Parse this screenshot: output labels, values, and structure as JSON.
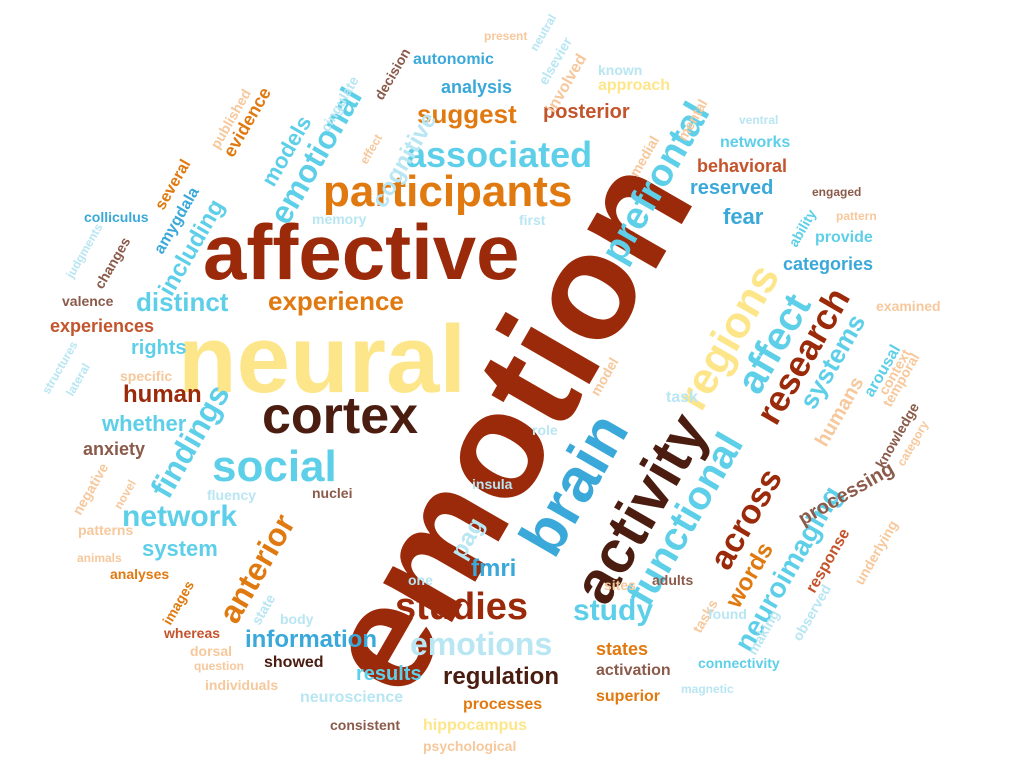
{
  "colors": {
    "dark_red": "#9b2a0a",
    "dark_brown": "#4a1d10",
    "orange": "#e07a10",
    "yellow": "#fde68a",
    "light_blue": "#5ecfe8",
    "mid_blue": "#3aa9d9",
    "rust": "#c4542c",
    "pale_orange": "#f6c89c",
    "pale_blue": "#b8e6f2",
    "gray_brown": "#8a5a4a"
  },
  "words": [
    {
      "text": "emotion",
      "color": "dark_red"
    },
    {
      "text": "neural",
      "color": "yellow"
    },
    {
      "text": "affective",
      "color": "dark_red"
    },
    {
      "text": "brain",
      "color": "mid_blue"
    },
    {
      "text": "activity",
      "color": "dark_brown"
    },
    {
      "text": "cortex",
      "color": "dark_brown"
    },
    {
      "text": "participants",
      "color": "orange"
    },
    {
      "text": "regions",
      "color": "yellow"
    },
    {
      "text": "functional",
      "color": "light_blue"
    },
    {
      "text": "social",
      "color": "light_blue"
    },
    {
      "text": "associated",
      "color": "light_blue"
    },
    {
      "text": "prefrontal",
      "color": "light_blue"
    },
    {
      "text": "research",
      "color": "dark_red"
    },
    {
      "text": "affect",
      "color": "light_blue"
    },
    {
      "text": "studies",
      "color": "dark_red"
    },
    {
      "text": "emotions",
      "color": "pale_blue"
    },
    {
      "text": "findings",
      "color": "light_blue"
    },
    {
      "text": "anterior",
      "color": "orange"
    },
    {
      "text": "across",
      "color": "dark_red"
    },
    {
      "text": "network",
      "color": "light_blue"
    },
    {
      "text": "emotional",
      "color": "light_blue"
    },
    {
      "text": "experience",
      "color": "orange"
    },
    {
      "text": "distinct",
      "color": "light_blue"
    },
    {
      "text": "study",
      "color": "light_blue"
    },
    {
      "text": "neuroimaging",
      "color": "light_blue"
    },
    {
      "text": "information",
      "color": "mid_blue"
    },
    {
      "text": "regulation",
      "color": "dark_brown"
    },
    {
      "text": "suggest",
      "color": "orange"
    },
    {
      "text": "human",
      "color": "dark_red"
    },
    {
      "text": "systems",
      "color": "light_blue"
    },
    {
      "text": "words",
      "color": "orange"
    },
    {
      "text": "including",
      "color": "light_blue"
    },
    {
      "text": "cognitive",
      "color": "pale_blue"
    },
    {
      "text": "models",
      "color": "light_blue"
    },
    {
      "text": "pag",
      "color": "pale_blue"
    },
    {
      "text": "fmri",
      "color": "mid_blue"
    },
    {
      "text": "whether",
      "color": "light_blue"
    },
    {
      "text": "system",
      "color": "light_blue"
    },
    {
      "text": "results",
      "color": "light_blue"
    },
    {
      "text": "rights",
      "color": "light_blue"
    },
    {
      "text": "fear",
      "color": "mid_blue"
    },
    {
      "text": "reserved",
      "color": "mid_blue"
    },
    {
      "text": "behavioral",
      "color": "rust"
    },
    {
      "text": "categories",
      "color": "mid_blue"
    },
    {
      "text": "processing",
      "color": "gray_brown"
    },
    {
      "text": "humans",
      "color": "pale_orange"
    },
    {
      "text": "experiences",
      "color": "rust"
    },
    {
      "text": "anxiety",
      "color": "gray_brown"
    },
    {
      "text": "posterior",
      "color": "rust"
    },
    {
      "text": "analysis",
      "color": "mid_blue"
    },
    {
      "text": "amygdala",
      "color": "mid_blue"
    },
    {
      "text": "evidence",
      "color": "orange"
    },
    {
      "text": "several",
      "color": "orange"
    },
    {
      "text": "states",
      "color": "orange"
    },
    {
      "text": "activation",
      "color": "gray_brown"
    },
    {
      "text": "superior",
      "color": "orange"
    },
    {
      "text": "processes",
      "color": "orange"
    },
    {
      "text": "showed",
      "color": "dark_brown"
    },
    {
      "text": "neuroscience",
      "color": "pale_blue"
    },
    {
      "text": "hippocampus",
      "color": "yellow"
    },
    {
      "text": "psychological",
      "color": "pale_orange"
    },
    {
      "text": "consistent",
      "color": "gray_brown"
    },
    {
      "text": "connectivity",
      "color": "light_blue"
    },
    {
      "text": "arousal",
      "color": "light_blue"
    },
    {
      "text": "response",
      "color": "rust"
    },
    {
      "text": "making",
      "color": "pale_blue"
    },
    {
      "text": "observed",
      "color": "pale_blue"
    },
    {
      "text": "task",
      "color": "pale_blue"
    },
    {
      "text": "images",
      "color": "orange"
    },
    {
      "text": "whereas",
      "color": "rust"
    },
    {
      "text": "analyses",
      "color": "orange"
    },
    {
      "text": "individuals",
      "color": "pale_orange"
    },
    {
      "text": "dorsal",
      "color": "pale_orange"
    },
    {
      "text": "question",
      "color": "pale_orange"
    },
    {
      "text": "changes",
      "color": "gray_brown"
    },
    {
      "text": "valence",
      "color": "gray_brown"
    },
    {
      "text": "colliculus",
      "color": "mid_blue"
    },
    {
      "text": "judgments",
      "color": "pale_blue"
    },
    {
      "text": "structures",
      "color": "pale_blue"
    },
    {
      "text": "lateral",
      "color": "pale_blue"
    },
    {
      "text": "specific",
      "color": "pale_orange"
    },
    {
      "text": "negative",
      "color": "pale_orange"
    },
    {
      "text": "novel",
      "color": "pale_orange"
    },
    {
      "text": "patterns",
      "color": "pale_orange"
    },
    {
      "text": "animals",
      "color": "pale_orange"
    },
    {
      "text": "fluency",
      "color": "pale_blue"
    },
    {
      "text": "nuclei",
      "color": "gray_brown"
    },
    {
      "text": "insula",
      "color": "pale_blue"
    },
    {
      "text": "role",
      "color": "pale_blue"
    },
    {
      "text": "model",
      "color": "pale_orange"
    },
    {
      "text": "one",
      "color": "pale_blue"
    },
    {
      "text": "body",
      "color": "pale_blue"
    },
    {
      "text": "state",
      "color": "pale_blue"
    },
    {
      "text": "tasks",
      "color": "pale_orange"
    },
    {
      "text": "found",
      "color": "pale_blue"
    },
    {
      "text": "adults",
      "color": "gray_brown"
    },
    {
      "text": "sites",
      "color": "pale_orange"
    },
    {
      "text": "magnetic",
      "color": "pale_blue"
    },
    {
      "text": "underlying",
      "color": "pale_orange"
    },
    {
      "text": "category",
      "color": "pale_orange"
    },
    {
      "text": "knowledge",
      "color": "gray_brown"
    },
    {
      "text": "temporal",
      "color": "pale_orange"
    },
    {
      "text": "context",
      "color": "pale_orange"
    },
    {
      "text": "examined",
      "color": "pale_orange"
    },
    {
      "text": "provide",
      "color": "light_blue"
    },
    {
      "text": "ability",
      "color": "light_blue"
    },
    {
      "text": "pattern",
      "color": "pale_orange"
    },
    {
      "text": "engaged",
      "color": "gray_brown"
    },
    {
      "text": "networks",
      "color": "light_blue"
    },
    {
      "text": "ventral",
      "color": "pale_blue"
    },
    {
      "text": "medial",
      "color": "pale_orange"
    },
    {
      "text": "mental",
      "color": "pale_orange"
    },
    {
      "text": "known",
      "color": "pale_blue"
    },
    {
      "text": "approach",
      "color": "yellow"
    },
    {
      "text": "involved",
      "color": "pale_orange"
    },
    {
      "text": "elsevier",
      "color": "pale_blue"
    },
    {
      "text": "neutral",
      "color": "pale_blue"
    },
    {
      "text": "present",
      "color": "pale_orange"
    },
    {
      "text": "autonomic",
      "color": "mid_blue"
    },
    {
      "text": "decision",
      "color": "gray_brown"
    },
    {
      "text": "cingulate",
      "color": "pale_blue"
    },
    {
      "text": "published",
      "color": "pale_orange"
    },
    {
      "text": "effect",
      "color": "pale_orange"
    },
    {
      "text": "memory",
      "color": "pale_blue"
    },
    {
      "text": "first",
      "color": "pale_blue"
    }
  ]
}
